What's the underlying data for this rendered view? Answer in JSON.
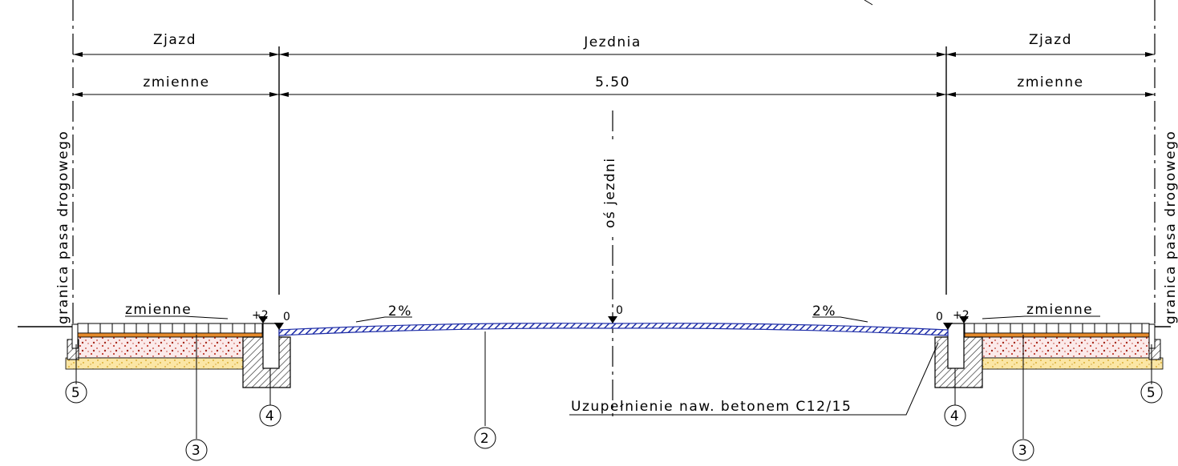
{
  "dimensions": {
    "left_section": "Zjazd",
    "center_section": "Jezdnia",
    "right_section": "Zjazd",
    "left_width": "zmienne",
    "center_width": "5.50",
    "right_width": "zmienne"
  },
  "axis_label": "oś jezdni",
  "boundary_label": "granica pasa drogowego",
  "slopes": {
    "left": "2%",
    "right": "2%"
  },
  "paving": {
    "left": "zmienne",
    "right": "zmienne"
  },
  "elevations": {
    "left_curb_top": "+2",
    "left_curb_edge": "0",
    "crown": "0",
    "right_curb_edge": "0",
    "right_curb_top": "+2"
  },
  "concrete_note": "Uzupełnienie naw. betonem C12/15",
  "markers": {
    "left_border": "5",
    "left_layers": "3",
    "left_curb": "4",
    "road_surface": "2",
    "right_curb": "4",
    "right_layers": "3",
    "right_border": "5"
  },
  "colors": {
    "asphalt": "#1f2ea8",
    "sand": "#f2c94c",
    "base_red": "#c0392b",
    "orange": "#e58a2b",
    "concrete_hatch": "#555555"
  }
}
